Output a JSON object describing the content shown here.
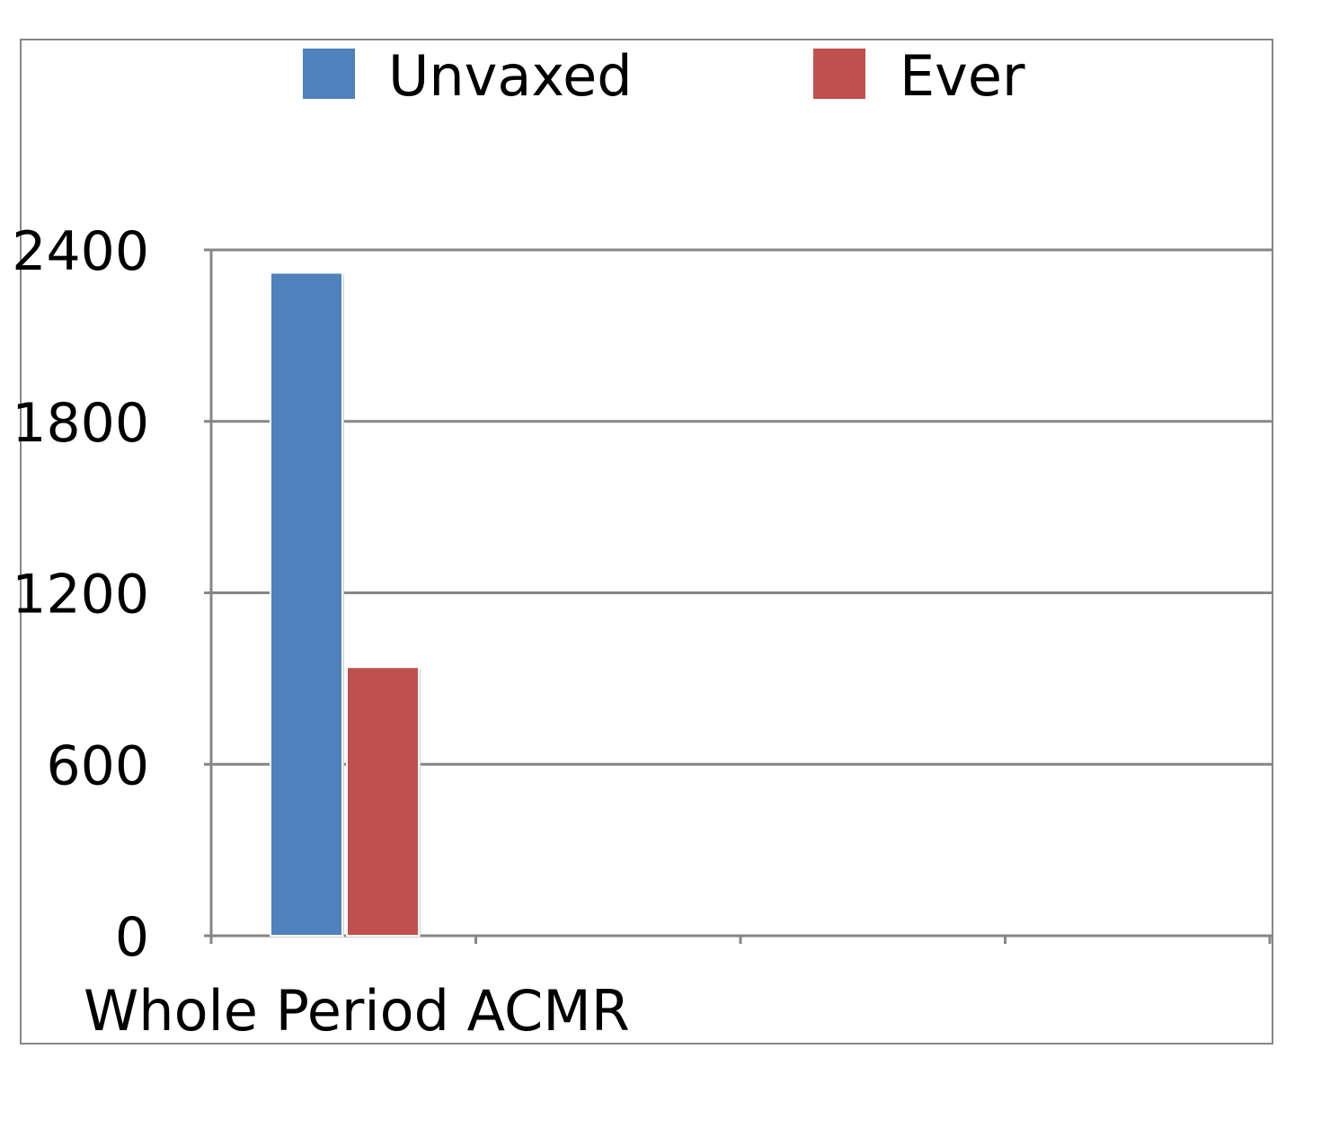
{
  "chart_data": {
    "type": "bar",
    "categories": [
      "Whole Period ACMR",
      "",
      "",
      ""
    ],
    "series": [
      {
        "name": "Unvaxed",
        "values": [
          2320,
          null,
          null,
          null
        ],
        "color": "#4F81BD"
      },
      {
        "name": "Ever",
        "values": [
          940,
          null,
          null,
          null
        ],
        "color": "#C0504D"
      }
    ],
    "yticks": [
      "0",
      "600",
      "1200",
      "1800",
      "2400"
    ],
    "ylim": [
      0,
      2400
    ],
    "grid": true,
    "legend_position": "top",
    "title": "",
    "xlabel": "",
    "ylabel": "",
    "gridline_color": "#868686",
    "border_color": "#868686"
  }
}
